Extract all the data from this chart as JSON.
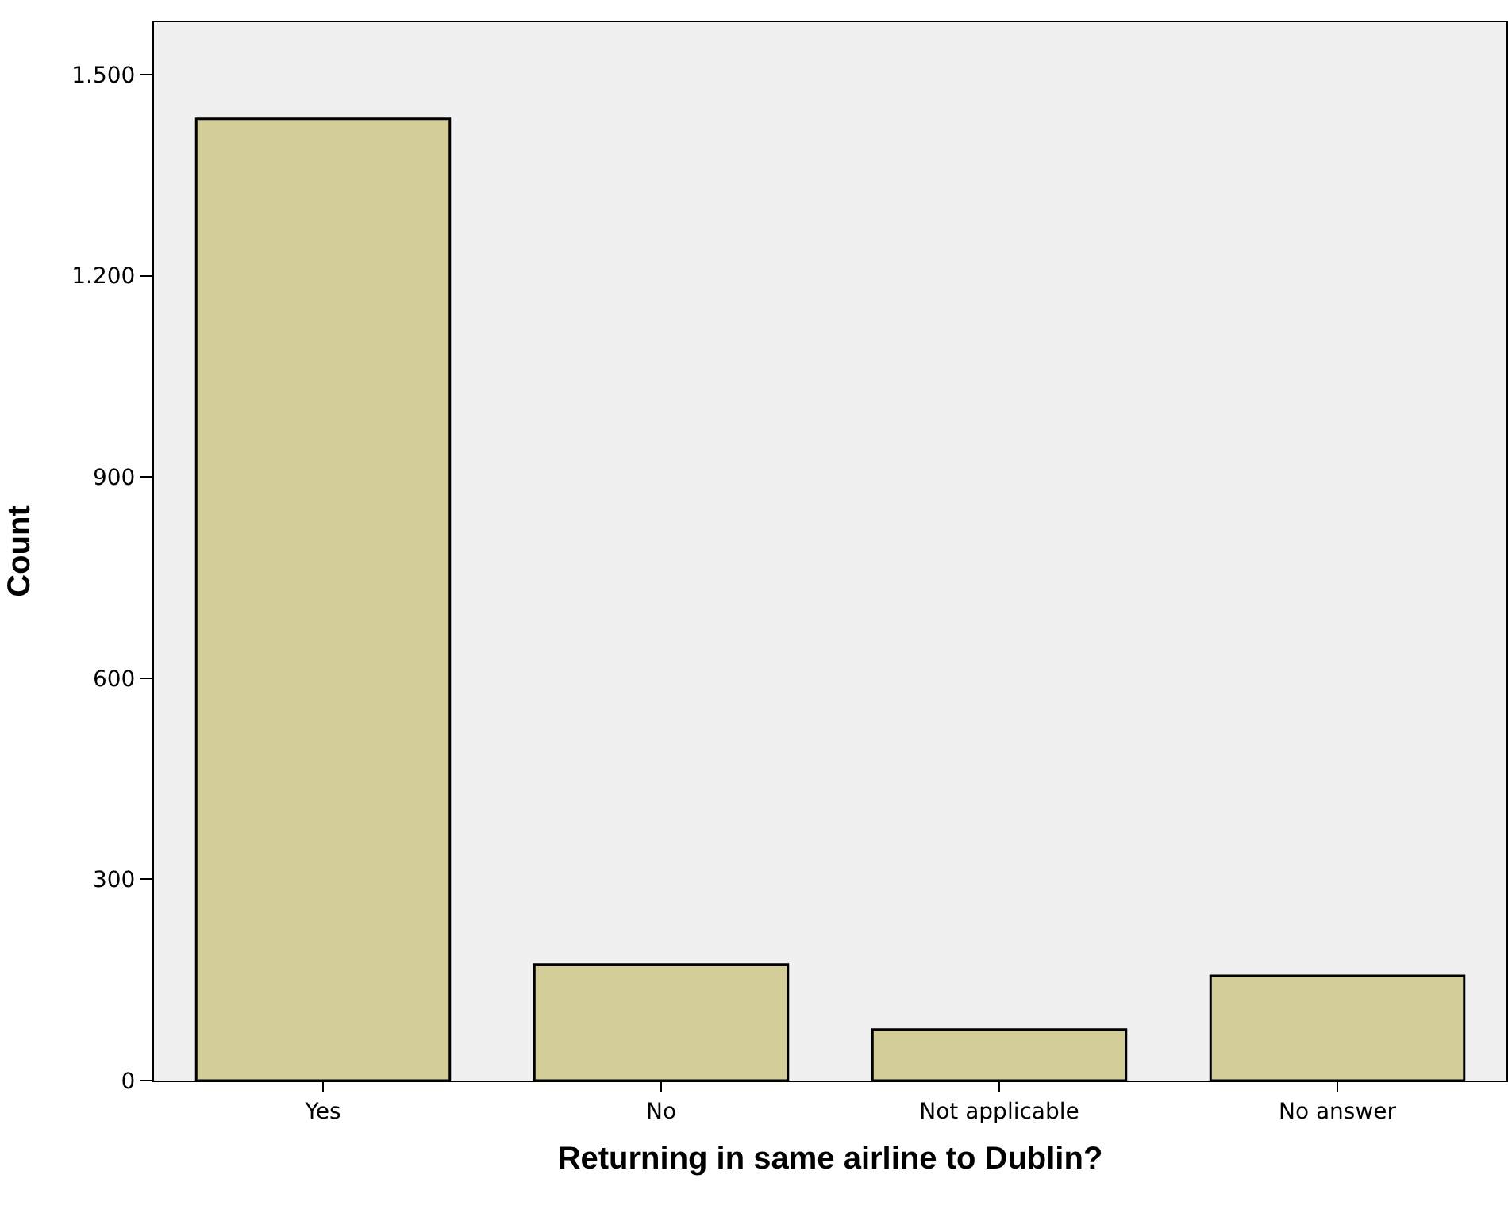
{
  "chart_data": {
    "type": "bar",
    "xlabel": "Returning in same airline to Dublin?",
    "ylabel": "Count",
    "categories": [
      "Yes",
      "No",
      "Not applicable",
      "No answer"
    ],
    "values": [
      1434,
      173,
      76,
      156
    ],
    "color": "#d3ce97",
    "ylim": [
      0,
      1578
    ],
    "yticks": [
      0,
      300,
      600,
      900,
      {
        "value": 1200,
        "label": "1.200"
      },
      {
        "value": 1500,
        "label": "1.500"
      }
    ],
    "grid": false
  }
}
